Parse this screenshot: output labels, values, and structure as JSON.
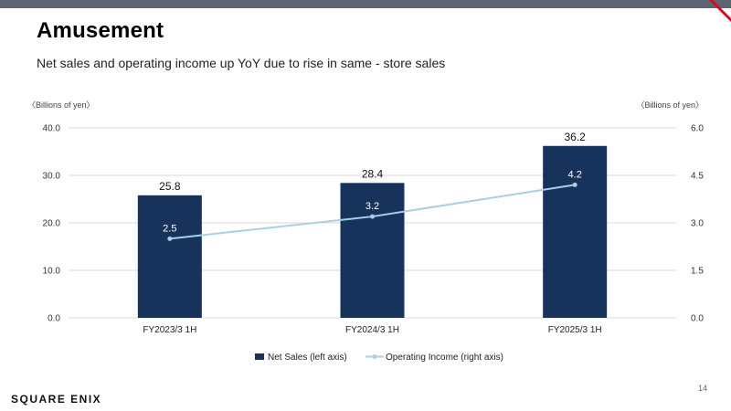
{
  "header": {
    "title": "Amusement",
    "subtitle": "Net sales and operating income up YoY due to rise in same - store sales"
  },
  "footer": {
    "page_number": "14",
    "logo_text": "SQUARE ENIX"
  },
  "colors": {
    "bar": "#17325b",
    "line": "#a9cfe7",
    "grid": "#d9d9d9",
    "topbar": "#5b6470",
    "accent": "#e2001a"
  },
  "chart_data": {
    "type": "bar",
    "categories": [
      "FY2023/3 1H",
      "FY2024/3 1H",
      "FY2025/3 1H"
    ],
    "series": [
      {
        "name": "Net Sales (left axis)",
        "type": "bar",
        "axis": "left",
        "values": [
          25.8,
          28.4,
          36.2
        ],
        "labels": [
          "25.8",
          "28.4",
          "36.2"
        ]
      },
      {
        "name": "Operating Income (right axis)",
        "type": "line",
        "axis": "right",
        "values": [
          2.5,
          3.2,
          4.2
        ],
        "labels": [
          "2.5",
          "3.2",
          "4.2"
        ]
      }
    ],
    "ylabel_left": "〈Billions of yen〉",
    "ylabel_right": "〈Billions of yen〉",
    "ylim_left": [
      0,
      40
    ],
    "ylim_right": [
      0,
      6
    ],
    "yticks_left": [
      "0.0",
      "10.0",
      "20.0",
      "30.0",
      "40.0"
    ],
    "yticks_right": [
      "0.0",
      "1.5",
      "3.0",
      "4.5",
      "6.0"
    ],
    "grid": true,
    "legend_position": "bottom"
  }
}
